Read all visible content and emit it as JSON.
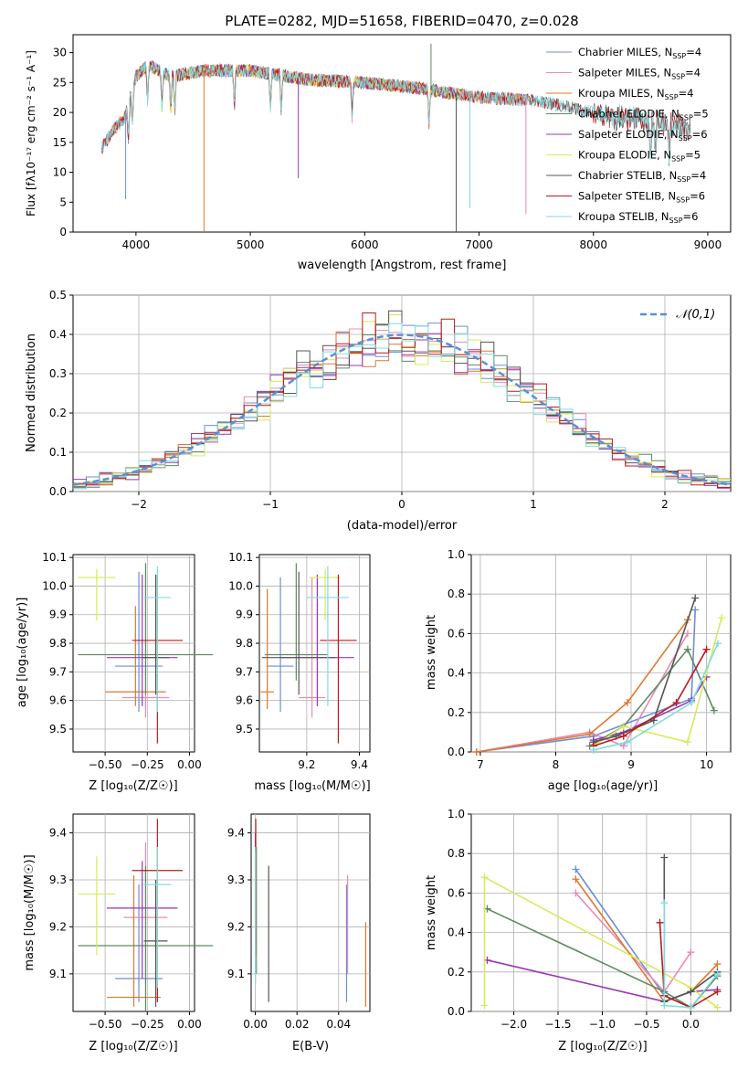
{
  "colors": [
    "#6b8fd8",
    "#e88ab7",
    "#e0782a",
    "#5f8a5f",
    "#9b35b5",
    "#d9e95a",
    "#555555",
    "#b81c1c",
    "#7fdde0"
  ],
  "chart_data": [
    {
      "id": "spectrum",
      "type": "line",
      "title": "PLATE=0282, MJD=51658, FIBERID=0470, z=0.028",
      "xlabel": "wavelength [Angstrom, rest frame]",
      "ylabel": "Flux [fλ10⁻¹⁷ erg cm⁻² s⁻¹ A⁻¹]",
      "xlim": [
        3450,
        9200
      ],
      "ylim": [
        0,
        33
      ],
      "xticks": [
        "4000",
        "5000",
        "6000",
        "7000",
        "8000",
        "9000"
      ],
      "yticks": [
        "0",
        "5",
        "10",
        "15",
        "20",
        "25",
        "30"
      ],
      "legend_position": "upper right",
      "series": [
        {
          "name": "Chabrier MILES, N_SSP=4",
          "range": [
            3700,
            7420
          ]
        },
        {
          "name": "Salpeter MILES, N_SSP=4",
          "range": [
            3700,
            7420
          ]
        },
        {
          "name": "Kroupa MILES, N_SSP=4",
          "range": [
            3700,
            7420
          ]
        },
        {
          "name": "Chabrier ELODIE, N_SSP=5",
          "range": [
            3920,
            6800
          ]
        },
        {
          "name": "Salpeter ELODIE, N_SSP=6",
          "range": [
            3920,
            6800
          ]
        },
        {
          "name": "Kroupa ELODIE, N_SSP=5",
          "range": [
            3920,
            6800
          ]
        },
        {
          "name": "Chabrier STELIB, N_SSP=4",
          "range": [
            3700,
            8850
          ]
        },
        {
          "name": "Salpeter STELIB, N_SSP=6",
          "range": [
            3700,
            8850
          ]
        },
        {
          "name": "Kroupa STELIB, N_SSP=6",
          "range": [
            3700,
            8850
          ]
        }
      ],
      "continuum": {
        "x": [
          3700,
          3800,
          3900,
          4000,
          4100,
          4300,
          4600,
          5000,
          5500,
          6000,
          6500,
          7000,
          7500,
          8000,
          8500,
          8850
        ],
        "y": [
          14,
          17,
          19,
          26,
          28,
          26,
          27,
          27,
          25.5,
          25,
          24,
          22.5,
          22,
          20,
          18.5,
          17.5
        ]
      },
      "absorption_lines": [
        3934,
        3969,
        4102,
        4227,
        4304,
        4340,
        4861,
        5175,
        5270,
        5890,
        6563,
        8498,
        8542,
        8662
      ],
      "spikes": [
        {
          "x": 3910,
          "y": 5.5
        },
        {
          "x": 4595,
          "y": 0
        },
        {
          "x": 5420,
          "y": 9
        },
        {
          "x": 6800,
          "y": 0
        },
        {
          "x": 6920,
          "y": 4
        },
        {
          "x": 7410,
          "y": 3
        },
        {
          "x": 6580,
          "y": 31.5
        }
      ]
    },
    {
      "id": "residuals",
      "type": "histogram",
      "xlabel": "(data-model)/error",
      "ylabel": "Normed distribution",
      "xlim": [
        -2.5,
        2.5
      ],
      "ylim": [
        0,
        0.5
      ],
      "xticks": [
        "−2",
        "−1",
        "0",
        "1",
        "2"
      ],
      "yticks": [
        "0.0",
        "0.1",
        "0.2",
        "0.3",
        "0.4",
        "0.5"
      ],
      "bin_width": 0.1,
      "bin_start": -2.5,
      "legend": "𝒩(0,1)",
      "reference_curve": "normal pdf, mean 0, sigma 1, dashed"
    },
    {
      "id": "age-vs-Z",
      "type": "errorbar",
      "xlabel": "Z [log₁₀(Z/Z☉)]",
      "ylabel": "age  [log₁₀(age/yr)]",
      "xlim": [
        -0.69,
        0.03
      ],
      "ylim": [
        9.42,
        10.11
      ],
      "xticks": [
        "−0.50",
        "−0.25",
        "0.00"
      ],
      "yticks": [
        "9.5",
        "9.6",
        "9.7",
        "9.8",
        "9.9",
        "10.0",
        "10.1"
      ],
      "points": [
        {
          "x": -0.3,
          "y": 9.72,
          "xerr": 0.14,
          "yerr": [
            0.16,
            0.33
          ]
        },
        {
          "x": -0.26,
          "y": 9.61,
          "xerr": 0.14,
          "yerr": [
            0.07,
            0.43
          ]
        },
        {
          "x": -0.32,
          "y": 9.63,
          "xerr": 0.18,
          "yerr": [
            0.05,
            0.3
          ]
        },
        {
          "x": -0.26,
          "y": 9.76,
          "xerr": 0.4,
          "yerr": [
            0.14,
            0.32
          ]
        },
        {
          "x": -0.28,
          "y": 9.75,
          "xerr": 0.21,
          "yerr": [
            0.17,
            0.29
          ]
        },
        {
          "x": -0.55,
          "y": 10.03,
          "xerr": 0.11,
          "yerr": [
            0.15,
            0.03
          ]
        },
        {
          "x": -0.2,
          "y": 9.75,
          "xerr": 0.08,
          "yerr": [
            0.13,
            0.29
          ]
        },
        {
          "x": -0.19,
          "y": 9.81,
          "xerr": 0.15,
          "yerr": [
            0.36,
            0.23
          ]
        },
        {
          "x": -0.19,
          "y": 9.96,
          "xerr": 0.08,
          "yerr": [
            0.4,
            0.11
          ]
        }
      ]
    },
    {
      "id": "age-vs-mass",
      "type": "errorbar",
      "xlabel": "mass [log₁₀(M/M☉)]",
      "ylabel": "",
      "xlim": [
        9.02,
        9.44
      ],
      "ylim": [
        9.42,
        10.11
      ],
      "xticks": [
        "9.2",
        "9.4"
      ],
      "yticks": [
        "9.5",
        "9.6",
        "9.7",
        "9.8",
        "9.9",
        "10.0",
        "10.1"
      ],
      "points": [
        {
          "x": 9.1,
          "y": 9.72,
          "xerr": 0.05,
          "yerr": [
            0.16,
            0.31
          ]
        },
        {
          "x": 9.22,
          "y": 9.61,
          "xerr": 0.05,
          "yerr": [
            0.07,
            0.42
          ]
        },
        {
          "x": 9.05,
          "y": 9.63,
          "xerr": 0.025,
          "yerr": [
            0.06,
            0.36
          ]
        },
        {
          "x": 9.16,
          "y": 9.76,
          "xerr": 0.12,
          "yerr": [
            0.09,
            0.32
          ]
        },
        {
          "x": 9.24,
          "y": 9.75,
          "xerr": 0.14,
          "yerr": [
            0.17,
            0.29
          ]
        },
        {
          "x": 9.27,
          "y": 10.03,
          "xerr": 0.06,
          "yerr": [
            0.15,
            0.03
          ]
        },
        {
          "x": 9.17,
          "y": 9.75,
          "xerr": 0.14,
          "yerr": [
            0.13,
            0.3
          ]
        },
        {
          "x": 9.32,
          "y": 9.81,
          "xerr": 0.07,
          "yerr": [
            0.36,
            0.23
          ]
        },
        {
          "x": 9.28,
          "y": 9.96,
          "xerr": 0.08,
          "yerr": [
            0.38,
            0.11
          ]
        }
      ]
    },
    {
      "id": "mass-weight-vs-age",
      "type": "line",
      "xlabel": "age  [log₁₀(age/yr)]",
      "ylabel": "mass weight",
      "xlim": [
        6.88,
        10.32
      ],
      "ylim": [
        0,
        1
      ],
      "xticks": [
        "7",
        "8",
        "9",
        "10"
      ],
      "yticks": [
        "0.0",
        "0.2",
        "0.4",
        "0.6",
        "0.8",
        "1.0"
      ],
      "series": [
        {
          "x": [
            6.95,
            8.5,
            9.8,
            9.85
          ],
          "y": [
            0.0,
            0.08,
            0.27,
            0.72
          ]
        },
        {
          "x": [
            6.95,
            8.45,
            8.9,
            9.75
          ],
          "y": [
            0.0,
            0.1,
            0.03,
            0.6
          ]
        },
        {
          "x": [
            6.95,
            8.45,
            8.95,
            9.75
          ],
          "y": [
            0.0,
            0.09,
            0.25,
            0.67
          ]
        },
        {
          "x": [
            8.45,
            8.9,
            9.75,
            10.1
          ],
          "y": [
            0.03,
            0.13,
            0.52,
            0.21
          ]
        },
        {
          "x": [
            8.5,
            8.9,
            9.8,
            10.0
          ],
          "y": [
            0.06,
            0.1,
            0.26,
            0.38
          ]
        },
        {
          "x": [
            8.5,
            8.9,
            9.75,
            10.2
          ],
          "y": [
            0.03,
            0.13,
            0.05,
            0.68
          ]
        },
        {
          "x": [
            8.5,
            8.8,
            9.3,
            9.85
          ],
          "y": [
            0.05,
            0.08,
            0.16,
            0.78
          ]
        },
        {
          "x": [
            8.5,
            8.9,
            9.6,
            10.0
          ],
          "y": [
            0.03,
            0.08,
            0.25,
            0.52
          ]
        },
        {
          "x": [
            8.5,
            8.95,
            9.8,
            10.15
          ],
          "y": [
            0.01,
            0.05,
            0.25,
            0.55
          ]
        }
      ]
    },
    {
      "id": "mass-vs-Z",
      "type": "errorbar",
      "xlabel": "Z [log₁₀(Z/Z☉)]",
      "ylabel": "mass [log₁₀(M/M☉)]",
      "xlim": [
        -0.69,
        0.03
      ],
      "ylim": [
        9.02,
        9.44
      ],
      "xticks": [
        "−0.50",
        "−0.25",
        "0.00"
      ],
      "yticks": [
        "9.1",
        "9.2",
        "9.3",
        "9.4"
      ],
      "points": [
        {
          "x": -0.3,
          "y": 9.09,
          "xerr": 0.14,
          "yerr": [
            0.05,
            0.2
          ]
        },
        {
          "x": -0.26,
          "y": 9.22,
          "xerr": 0.13,
          "yerr": [
            0.14,
            0.16
          ]
        },
        {
          "x": -0.33,
          "y": 9.05,
          "xerr": 0.16,
          "yerr": [
            0.02,
            0.26
          ]
        },
        {
          "x": -0.26,
          "y": 9.16,
          "xerr": 0.4,
          "yerr": [
            0.14,
            0.17
          ]
        },
        {
          "x": -0.28,
          "y": 9.24,
          "xerr": 0.21,
          "yerr": [
            0.15,
            0.1
          ]
        },
        {
          "x": -0.55,
          "y": 9.27,
          "xerr": 0.11,
          "yerr": [
            0.13,
            0.08
          ]
        },
        {
          "x": -0.2,
          "y": 9.17,
          "xerr": 0.07,
          "yerr": [
            0.14,
            0.13
          ]
        },
        {
          "x": -0.19,
          "y": 9.32,
          "xerr": 0.15,
          "yerr": [
            0.28,
            0.11
          ]
        },
        {
          "x": -0.19,
          "y": 9.29,
          "xerr": 0.08,
          "yerr": [
            0.22,
            0.08
          ]
        }
      ]
    },
    {
      "id": "mass-vs-EBV",
      "type": "errorbar",
      "xlabel": "E(B-V)",
      "ylabel": "",
      "xlim": [
        -0.002,
        0.055
      ],
      "ylim": [
        9.02,
        9.44
      ],
      "xticks": [
        "0.00",
        "0.02",
        "0.04"
      ],
      "yticks": [
        "9.1",
        "9.2",
        "9.3",
        "9.4"
      ],
      "points": [
        {
          "x": 0.0438,
          "y": 9.17,
          "xerr": 0,
          "yerr": [
            0.13,
            0.12
          ]
        },
        {
          "x": 0.0443,
          "y": 9.21,
          "xerr": 0,
          "yerr": [
            0.11,
            0.1
          ]
        },
        {
          "x": 0.053,
          "y": 9.12,
          "xerr": 0,
          "yerr": [
            0.09,
            0.09
          ]
        },
        {
          "x": 0.0005,
          "y": 9.25,
          "xerr": 0,
          "yerr": [
            0.15,
            0.12
          ]
        },
        {
          "x": 0.0,
          "y": 9.3,
          "xerr": 0,
          "yerr": [
            0.1,
            0.1
          ]
        },
        {
          "x": 0.0,
          "y": 9.28,
          "xerr": 0,
          "yerr": [
            0.08,
            0.08
          ]
        },
        {
          "x": 0.0064,
          "y": 9.17,
          "xerr": 0,
          "yerr": [
            0.13,
            0.16
          ]
        },
        {
          "x": 0.0002,
          "y": 9.28,
          "xerr": 0,
          "yerr": [
            0.14,
            0.15
          ]
        },
        {
          "x": 0.0001,
          "y": 9.24,
          "xerr": 0,
          "yerr": [
            0.16,
            0.13
          ]
        }
      ]
    },
    {
      "id": "mass-weight-vs-Z",
      "type": "line",
      "xlabel": "Z [log₁₀(Z/Z☉)]",
      "ylabel": "mass weight",
      "xlim": [
        -2.48,
        0.45
      ],
      "ylim": [
        0,
        1
      ],
      "xticks": [
        "−2.0",
        "−1.5",
        "−1.0",
        "−0.5",
        "0.0"
      ],
      "yticks": [
        "0.0",
        "0.2",
        "0.4",
        "0.6",
        "0.8",
        "1.0"
      ],
      "series": [
        {
          "x": [
            -1.3,
            -0.3,
            0.0,
            0.3
          ],
          "y": [
            0.72,
            0.08,
            0.02,
            0.18
          ]
        },
        {
          "x": [
            -1.3,
            -0.3,
            0.0
          ],
          "y": [
            0.6,
            0.1,
            0.3
          ]
        },
        {
          "x": [
            -1.3,
            -0.3,
            0.0,
            0.3
          ],
          "y": [
            0.67,
            0.05,
            0.1,
            0.24
          ]
        },
        {
          "x": [
            -2.3,
            -0.3,
            0.0,
            0.3
          ],
          "y": [
            0.52,
            0.1,
            0.02,
            0.18
          ]
        },
        {
          "x": [
            -2.3,
            -0.3,
            0.0,
            0.3
          ],
          "y": [
            0.26,
            0.05,
            0.1,
            0.11
          ]
        },
        {
          "x": [
            -2.33,
            -2.33,
            0.0,
            0.3
          ],
          "y": [
            0.03,
            0.68,
            0.12,
            0.02
          ]
        },
        {
          "x": [
            -0.3,
            -0.3,
            0.0,
            0.3
          ],
          "y": [
            0.78,
            0.05,
            0.1,
            0.2
          ]
        },
        {
          "x": [
            -0.35,
            -0.3,
            0.0,
            0.3
          ],
          "y": [
            0.45,
            0.08,
            0.02,
            0.1
          ]
        },
        {
          "x": [
            -0.3,
            -0.3,
            0.0,
            0.3
          ],
          "y": [
            0.55,
            0.03,
            0.02,
            0.19
          ]
        }
      ]
    }
  ]
}
